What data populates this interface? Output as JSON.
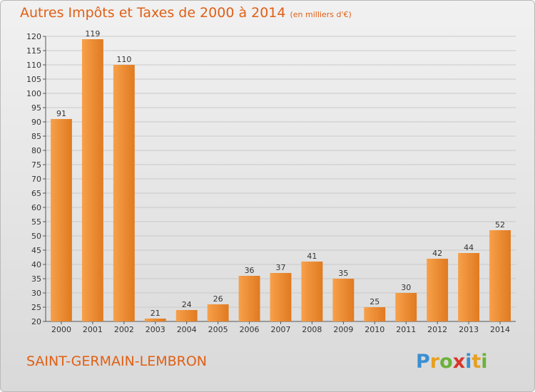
{
  "chart_data": {
    "type": "bar",
    "title": "Autres Impôts et Taxes de 2000 à 2014",
    "unit": "(en milliers d'€)",
    "categories": [
      "2000",
      "2001",
      "2002",
      "2003",
      "2004",
      "2005",
      "2006",
      "2007",
      "2008",
      "2009",
      "2010",
      "2011",
      "2012",
      "2013",
      "2014"
    ],
    "values": [
      91,
      119,
      110,
      21,
      24,
      26,
      36,
      37,
      41,
      35,
      25,
      30,
      42,
      44,
      52
    ],
    "ylim": [
      20,
      120
    ],
    "yticks": [
      20,
      25,
      30,
      35,
      40,
      45,
      50,
      55,
      60,
      65,
      70,
      75,
      80,
      85,
      90,
      95,
      100,
      105,
      110,
      115,
      120
    ],
    "grid": true,
    "bar_color": "#f0953a"
  },
  "commune": "SAINT-GERMAIN-LEMBRON",
  "logo": {
    "letters": [
      "P",
      "r",
      "o",
      "x",
      "i",
      "t",
      "i"
    ]
  }
}
